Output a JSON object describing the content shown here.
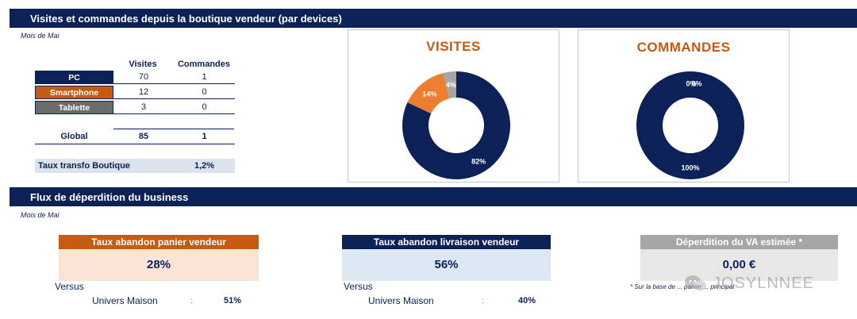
{
  "section1": {
    "title": "Visites et commandes depuis la boutique vendeur (par devices)",
    "subtitle": "Mois de Mai"
  },
  "table": {
    "col_visits": "Visites",
    "col_orders": "Commandes",
    "rows": [
      {
        "label": "PC",
        "visits": "70",
        "orders": "1",
        "color": "#0b2157"
      },
      {
        "label": "Smartphone",
        "visits": "12",
        "orders": "0",
        "color": "#c55a11"
      },
      {
        "label": "Tablette",
        "visits": "3",
        "orders": "0",
        "color": "#6b6b6b"
      }
    ],
    "global_label": "Global",
    "global_visits": "85",
    "global_orders": "1",
    "taux_label": "Taux transfo Boutique",
    "taux_value": "1,2%"
  },
  "chart_data": [
    {
      "type": "pie",
      "title": "VISITES",
      "categories": [
        "PC",
        "Smartphone",
        "Tablette"
      ],
      "values": [
        82,
        14,
        4
      ],
      "labels": [
        "82%",
        "14%",
        "4%"
      ],
      "colors": [
        "#0b2157",
        "#ed7d31",
        "#a5a5a5"
      ]
    },
    {
      "type": "pie",
      "title": "COMMANDES",
      "categories": [
        "PC",
        "Smartphone",
        "Tablette"
      ],
      "values": [
        100,
        0,
        0
      ],
      "labels": [
        "100%",
        "0%",
        "0%"
      ],
      "colors": [
        "#0b2157",
        "#ed7d31",
        "#a5a5a5"
      ]
    }
  ],
  "section2": {
    "title": "Flux de déperdition du business",
    "subtitle": "Mois de Mai"
  },
  "cards": [
    {
      "header": "Taux abandon panier vendeur",
      "value": "28%",
      "versus": "Versus",
      "universe": "Univers Maison",
      "sep": ":",
      "compare": "51%",
      "hdr_color": "#c55a11",
      "bg_color": "#fbe3d6"
    },
    {
      "header": "Taux abandon livraison vendeur",
      "value": "56%",
      "versus": "Versus",
      "universe": "Univers Maison",
      "sep": ":",
      "compare": "40%",
      "hdr_color": "#0b2157",
      "bg_color": "#dde8f4"
    },
    {
      "header": "Déperdition du VA estimée *",
      "value": "0,00 €",
      "hdr_color": "#a6a6a6",
      "bg_color": "#e7e7e7"
    }
  ],
  "footnote": "* Sur la base de ... panier ... principal",
  "watermark": "JOSYLNNEE"
}
